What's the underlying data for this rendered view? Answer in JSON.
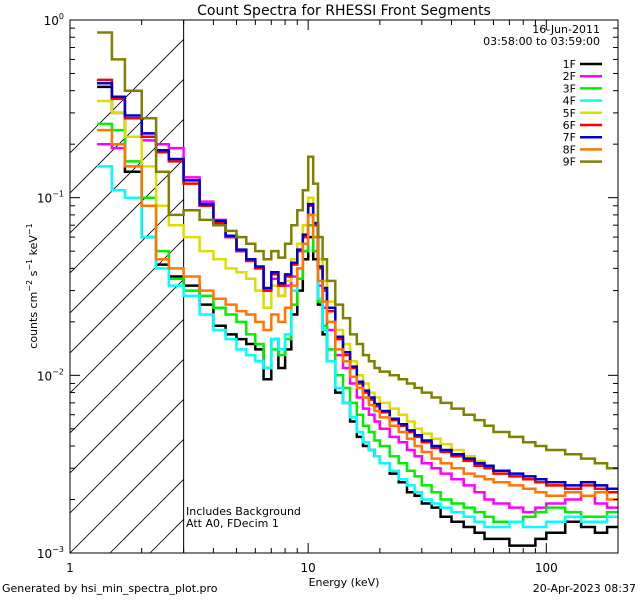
{
  "chart_data": {
    "type": "line",
    "title": "Count Spectra for RHESSI Front Segments",
    "xlabel": "Energy (keV)",
    "ylabel_parts": {
      "base": "counts cm",
      "exp1": "−2",
      "mid": " s",
      "exp2": "−1",
      "end": " keV",
      "exp3": "−1"
    },
    "xscale": "log",
    "yscale": "log",
    "xlim": [
      1,
      200
    ],
    "ylim": [
      0.001,
      1
    ],
    "x_ticks": [
      {
        "value": 1,
        "label": "1"
      },
      {
        "value": 10,
        "label": "10"
      },
      {
        "value": 100,
        "label": "100"
      }
    ],
    "y_ticks": [
      {
        "value": 1,
        "base": "10",
        "exp": "0"
      },
      {
        "value": 0.1,
        "base": "10",
        "exp": "−1"
      },
      {
        "value": 0.01,
        "base": "10",
        "exp": "−2"
      },
      {
        "value": 0.001,
        "base": "10",
        "exp": "−3"
      }
    ],
    "hatch_region": [
      1,
      3
    ],
    "date_label": "16-Jun-2011",
    "time_label": "03:58:00 to 03:59:00",
    "annotations": [
      "Includes Background",
      "Att A0, FDecim 1"
    ],
    "legend_position": "top-right",
    "bin_edges": [
      1.3,
      1.5,
      1.7,
      2.0,
      2.3,
      2.6,
      3.0,
      3.5,
      4.0,
      4.5,
      5.0,
      5.5,
      6.0,
      6.5,
      7.0,
      7.5,
      8.0,
      8.5,
      9.0,
      9.5,
      10.0,
      10.5,
      11.0,
      11.5,
      12.0,
      13.0,
      14.0,
      15.0,
      16.0,
      17.0,
      18.0,
      19.0,
      20.0,
      22.0,
      24.0,
      26.0,
      28.0,
      30.0,
      33.0,
      36.0,
      40.0,
      45.0,
      50.0,
      55.0,
      60.0,
      70.0,
      80.0,
      90.0,
      100.0,
      120.0,
      140.0,
      160.0,
      180.0,
      200.0
    ],
    "series": [
      {
        "name": "1F",
        "color": "#000000",
        "values": [
          0.42,
          0.3,
          0.14,
          0.06,
          0.042,
          0.036,
          0.032,
          0.025,
          0.019,
          0.017,
          0.016,
          0.015,
          0.014,
          0.0095,
          0.016,
          0.011,
          0.014,
          0.022,
          0.03,
          0.045,
          0.06,
          0.045,
          0.025,
          0.017,
          0.012,
          0.008,
          0.007,
          0.0055,
          0.0045,
          0.004,
          0.0038,
          0.0035,
          0.0032,
          0.0028,
          0.0025,
          0.0022,
          0.0021,
          0.0019,
          0.0018,
          0.0016,
          0.0015,
          0.0014,
          0.0013,
          0.0012,
          0.0012,
          0.0011,
          0.0011,
          0.0012,
          0.0013,
          0.0015,
          0.0014,
          0.0013,
          0.0014
        ]
      },
      {
        "name": "2F",
        "color": "#ff00ff",
        "values": [
          0.2,
          0.19,
          0.22,
          0.21,
          0.2,
          0.19,
          0.13,
          0.095,
          0.075,
          0.06,
          0.05,
          0.045,
          0.04,
          0.03,
          0.035,
          0.028,
          0.032,
          0.036,
          0.04,
          0.05,
          0.08,
          0.06,
          0.032,
          0.024,
          0.018,
          0.013,
          0.011,
          0.009,
          0.0075,
          0.0065,
          0.006,
          0.0055,
          0.005,
          0.0045,
          0.0042,
          0.0038,
          0.0035,
          0.0032,
          0.003,
          0.0028,
          0.0026,
          0.0024,
          0.0022,
          0.002,
          0.0019,
          0.0018,
          0.0017,
          0.0018,
          0.0019,
          0.002,
          0.0021,
          0.0019,
          0.0018
        ]
      },
      {
        "name": "3F",
        "color": "#00ee00",
        "values": [
          0.26,
          0.24,
          0.16,
          0.1,
          0.05,
          0.035,
          0.03,
          0.028,
          0.024,
          0.022,
          0.02,
          0.017,
          0.015,
          0.011,
          0.014,
          0.013,
          0.016,
          0.025,
          0.035,
          0.05,
          0.07,
          0.05,
          0.026,
          0.019,
          0.014,
          0.01,
          0.0085,
          0.007,
          0.006,
          0.0052,
          0.0048,
          0.0043,
          0.004,
          0.0035,
          0.0032,
          0.0029,
          0.0027,
          0.0024,
          0.0022,
          0.002,
          0.0019,
          0.0018,
          0.0017,
          0.0016,
          0.0015,
          0.0015,
          0.0016,
          0.0017,
          0.0018,
          0.0017,
          0.0016,
          0.0016,
          0.0017
        ]
      },
      {
        "name": "4F",
        "color": "#00ffff",
        "values": [
          0.15,
          0.11,
          0.1,
          0.06,
          0.04,
          0.032,
          0.028,
          0.022,
          0.018,
          0.016,
          0.014,
          0.013,
          0.012,
          0.011,
          0.016,
          0.014,
          0.017,
          0.03,
          0.04,
          0.06,
          0.1,
          0.06,
          0.027,
          0.018,
          0.012,
          0.0085,
          0.007,
          0.0058,
          0.0048,
          0.0042,
          0.0038,
          0.0035,
          0.0032,
          0.0029,
          0.0026,
          0.0024,
          0.0022,
          0.002,
          0.0019,
          0.0018,
          0.0017,
          0.0016,
          0.0015,
          0.0014,
          0.0014,
          0.0015,
          0.0014,
          0.0014,
          0.0015,
          0.0016,
          0.0015,
          0.0015,
          0.0016
        ]
      },
      {
        "name": "5F",
        "color": "#dddd00",
        "values": [
          0.35,
          0.3,
          0.22,
          0.15,
          0.09,
          0.07,
          0.06,
          0.05,
          0.045,
          0.04,
          0.038,
          0.035,
          0.03,
          0.024,
          0.032,
          0.028,
          0.034,
          0.045,
          0.055,
          0.07,
          0.1,
          0.08,
          0.045,
          0.034,
          0.026,
          0.018,
          0.015,
          0.012,
          0.01,
          0.009,
          0.008,
          0.0075,
          0.007,
          0.0065,
          0.006,
          0.0055,
          0.005,
          0.0047,
          0.0044,
          0.0041,
          0.0038,
          0.0035,
          0.0033,
          0.0031,
          0.0029,
          0.0027,
          0.0026,
          0.0025,
          0.0024,
          0.0023,
          0.0025,
          0.0024,
          0.0023
        ]
      },
      {
        "name": "6F",
        "color": "#ff0000",
        "values": [
          0.46,
          0.36,
          0.28,
          0.22,
          0.18,
          0.16,
          0.12,
          0.09,
          0.072,
          0.06,
          0.05,
          0.044,
          0.04,
          0.03,
          0.037,
          0.032,
          0.036,
          0.042,
          0.05,
          0.06,
          0.09,
          0.07,
          0.04,
          0.03,
          0.023,
          0.016,
          0.013,
          0.011,
          0.009,
          0.008,
          0.0073,
          0.0067,
          0.0062,
          0.0056,
          0.0052,
          0.0048,
          0.0045,
          0.0042,
          0.0039,
          0.0037,
          0.0035,
          0.0033,
          0.0031,
          0.003,
          0.0028,
          0.0027,
          0.0026,
          0.0025,
          0.0024,
          0.0023,
          0.0024,
          0.0023,
          0.0022
        ]
      },
      {
        "name": "7F",
        "color": "#0000cc",
        "values": [
          0.44,
          0.37,
          0.29,
          0.23,
          0.185,
          0.165,
          0.125,
          0.092,
          0.074,
          0.061,
          0.051,
          0.045,
          0.041,
          0.031,
          0.038,
          0.033,
          0.037,
          0.043,
          0.051,
          0.062,
          0.092,
          0.072,
          0.041,
          0.031,
          0.024,
          0.0165,
          0.0135,
          0.0112,
          0.0092,
          0.0082,
          0.0075,
          0.0069,
          0.0063,
          0.0057,
          0.0053,
          0.0049,
          0.0046,
          0.0043,
          0.004,
          0.0038,
          0.0036,
          0.0034,
          0.0032,
          0.0031,
          0.0029,
          0.0028,
          0.0027,
          0.0026,
          0.0025,
          0.0024,
          0.0025,
          0.0024,
          0.0023
        ]
      },
      {
        "name": "8F",
        "color": "#ff7700",
        "values": [
          0.24,
          0.2,
          0.15,
          0.09,
          0.045,
          0.04,
          0.036,
          0.03,
          0.027,
          0.025,
          0.023,
          0.022,
          0.02,
          0.018,
          0.022,
          0.02,
          0.024,
          0.032,
          0.04,
          0.055,
          0.08,
          0.06,
          0.034,
          0.026,
          0.02,
          0.014,
          0.012,
          0.0098,
          0.0085,
          0.0075,
          0.0068,
          0.0063,
          0.0058,
          0.0052,
          0.0048,
          0.0044,
          0.004,
          0.0037,
          0.0034,
          0.0032,
          0.003,
          0.0028,
          0.0027,
          0.0026,
          0.0025,
          0.0024,
          0.0023,
          0.0022,
          0.0021,
          0.0022,
          0.0021,
          0.0022,
          0.002
        ]
      },
      {
        "name": "9F",
        "color": "#808000",
        "values": [
          0.85,
          0.6,
          0.4,
          0.28,
          0.14,
          0.08,
          0.085,
          0.075,
          0.07,
          0.065,
          0.06,
          0.055,
          0.05,
          0.045,
          0.05,
          0.046,
          0.055,
          0.07,
          0.085,
          0.11,
          0.17,
          0.12,
          0.06,
          0.045,
          0.034,
          0.025,
          0.021,
          0.017,
          0.015,
          0.013,
          0.012,
          0.011,
          0.0105,
          0.01,
          0.0095,
          0.009,
          0.0085,
          0.008,
          0.0075,
          0.007,
          0.0065,
          0.006,
          0.0056,
          0.0052,
          0.0048,
          0.0045,
          0.0042,
          0.004,
          0.0038,
          0.0036,
          0.0034,
          0.0032,
          0.003
        ]
      }
    ],
    "footer_left": "Generated by hsi_min_spectra_plot.pro",
    "footer_right": "20-Apr-2023 08:37"
  }
}
